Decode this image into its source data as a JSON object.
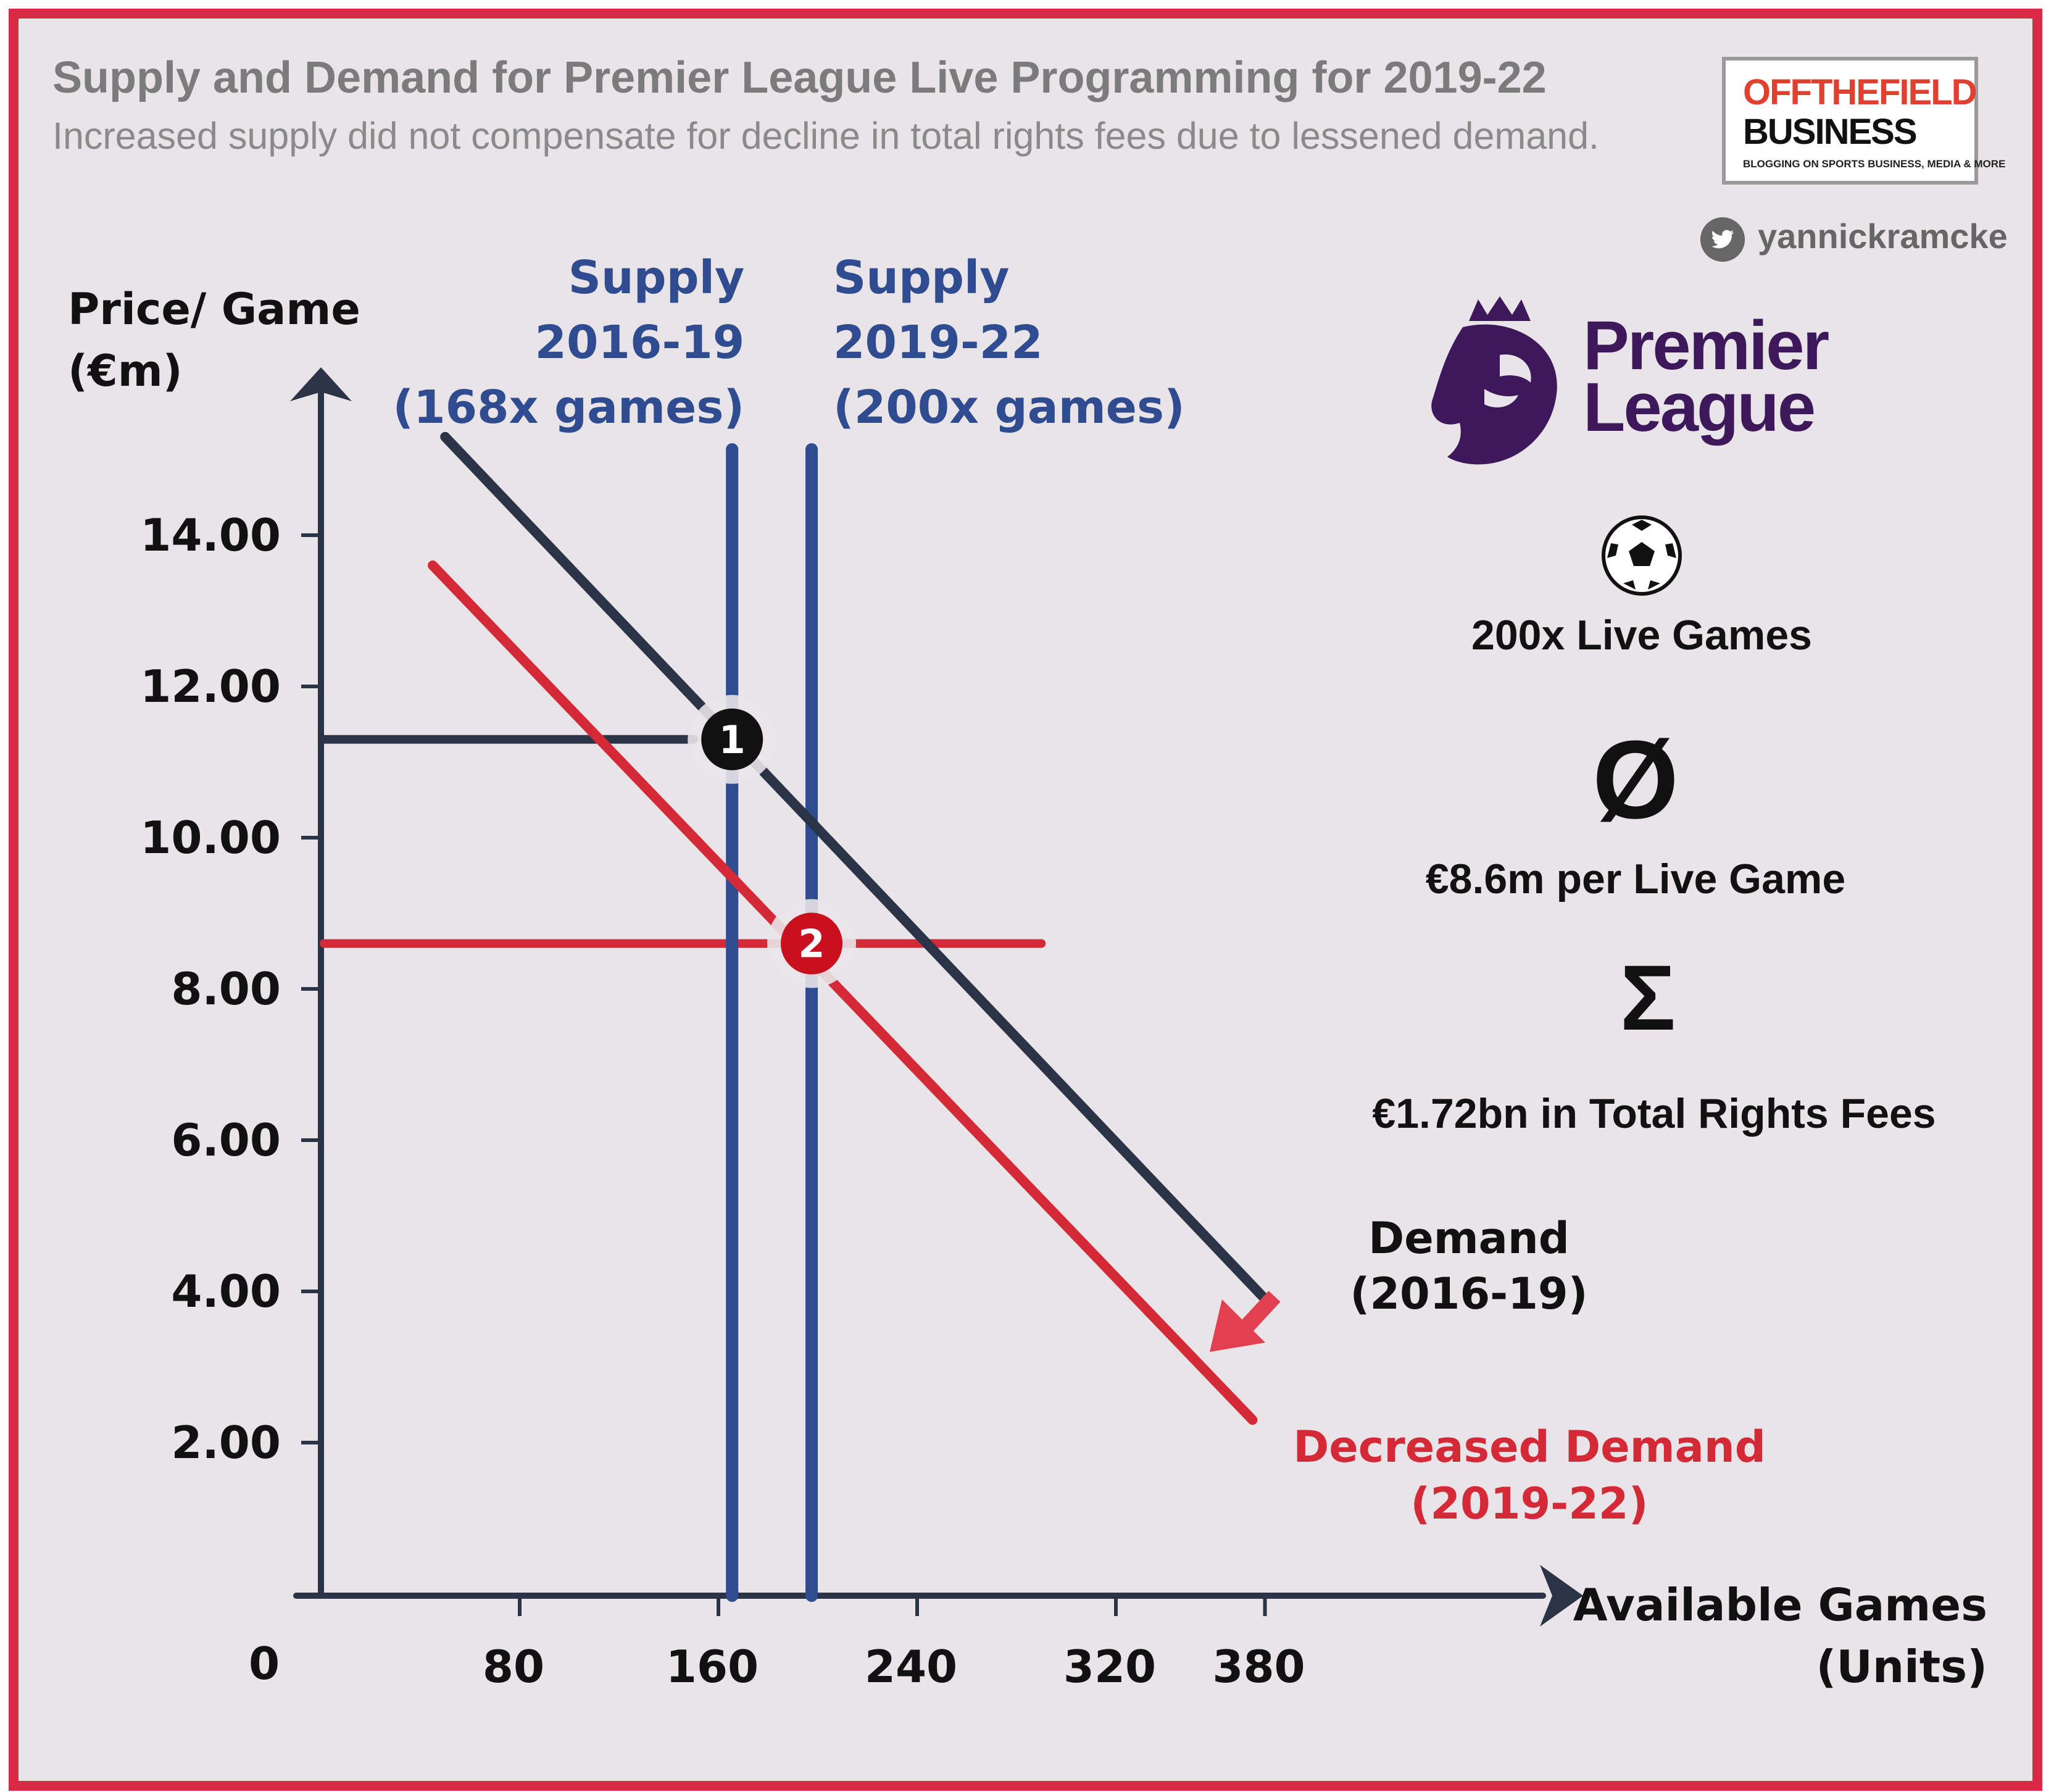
{
  "header": {
    "title": "Supply and Demand for Premier League Live Programming for 2019-22",
    "subtitle": "Increased supply did not compensate for decline in total rights fees due to lessened demand."
  },
  "brand": {
    "line1": "OFFTHEFIELD",
    "line2": "BUSINESS",
    "tagline": "BLOGGING ON SPORTS BUSINESS, MEDIA & MORE",
    "twitter_handle": "yannickramcke",
    "league_name_1": "Premier",
    "league_name_2": "League"
  },
  "stats": {
    "games": "200x Live Games",
    "avg_symbol": "Ø",
    "avg": "€8.6m per Live Game",
    "sum_symbol": "Σ",
    "total": "€1.72bn in Total Rights Fees"
  },
  "chart_data": {
    "type": "line",
    "ylabel_1": "Price/ Game",
    "ylabel_2": "(€m)",
    "xlabel_1": "Available Games",
    "xlabel_2": "(Units)",
    "origin_label": "0",
    "y_ticks": [
      "14.00",
      "12.00",
      "10.00",
      "8.00",
      "6.00",
      "4.00",
      "2.00"
    ],
    "x_ticks": [
      "80",
      "160",
      "240",
      "320",
      "380"
    ],
    "series": [
      {
        "label_1": "Demand",
        "label_2": "(2016-19)",
        "color": "#2b3347",
        "points": [
          [
            50,
            15.3
          ],
          [
            380,
            3.9
          ]
        ]
      },
      {
        "label_1": "Decreased Demand",
        "label_2": "(2019-22)",
        "color": "#d42a38",
        "points": [
          [
            45,
            13.6
          ],
          [
            375,
            2.3
          ]
        ]
      }
    ],
    "supply": [
      {
        "label_1": "Supply",
        "label_2": "2016-19",
        "label_3": "(168x games)",
        "x": 168,
        "color": "#2e4c8f"
      },
      {
        "label_1": "Supply",
        "label_2": "2019-22",
        "label_3": "(200x games)",
        "x": 200,
        "color": "#2e4c8f"
      }
    ],
    "equilibria": [
      {
        "label": "1",
        "x": 168,
        "y": 11.3,
        "color": "#111111"
      },
      {
        "label": "2",
        "x": 200,
        "y": 8.6,
        "color": "#c8101e"
      }
    ],
    "price_lines": [
      {
        "y": 11.3,
        "x_end": 150,
        "color": "#2b3347"
      },
      {
        "y": 8.6,
        "x_end": 290,
        "color": "#d42a38"
      }
    ]
  }
}
